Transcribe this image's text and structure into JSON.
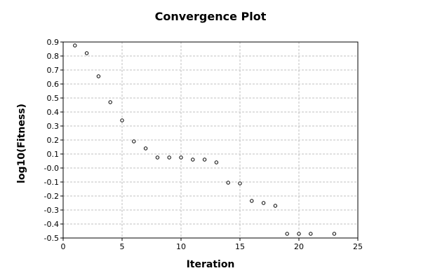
{
  "chart_data": {
    "type": "scatter",
    "title": "Convergence Plot",
    "xlabel": "Iteration",
    "ylabel": "log10(Fitness)",
    "xlim": [
      0,
      25
    ],
    "ylim": [
      -0.5,
      0.9
    ],
    "x_ticks": [
      0,
      5,
      10,
      15,
      20,
      25
    ],
    "y_ticks": [
      0.9,
      0.8,
      0.7,
      0.6,
      0.5,
      0.4,
      0.3,
      0.2,
      0.1,
      -0.0,
      -0.1,
      -0.2,
      -0.3,
      -0.4,
      -0.5
    ],
    "y_tick_labels": [
      "0.9",
      "0.8",
      "0.7",
      "0.6",
      "0.5",
      "0.4",
      "0.3",
      "0.2",
      "0.1",
      "-0.0",
      "-0.1",
      "-0.2",
      "-0.3",
      "-0.4",
      "-0.5"
    ],
    "x_tick_labels": [
      "0",
      "5",
      "10",
      "15",
      "20",
      "25"
    ],
    "grid": true,
    "x": [
      1,
      2,
      3,
      4,
      5,
      6,
      7,
      8,
      9,
      10,
      11,
      12,
      13,
      14,
      15,
      16,
      17,
      18,
      19,
      20,
      21,
      23
    ],
    "y": [
      0.875,
      0.82,
      0.655,
      0.47,
      0.34,
      0.19,
      0.14,
      0.075,
      0.075,
      0.075,
      0.06,
      0.06,
      0.04,
      -0.105,
      -0.11,
      -0.235,
      -0.25,
      -0.27,
      -0.47,
      -0.47,
      -0.47,
      -0.47
    ],
    "marker_color": "#000000",
    "marker_fill": "#ffffff"
  }
}
